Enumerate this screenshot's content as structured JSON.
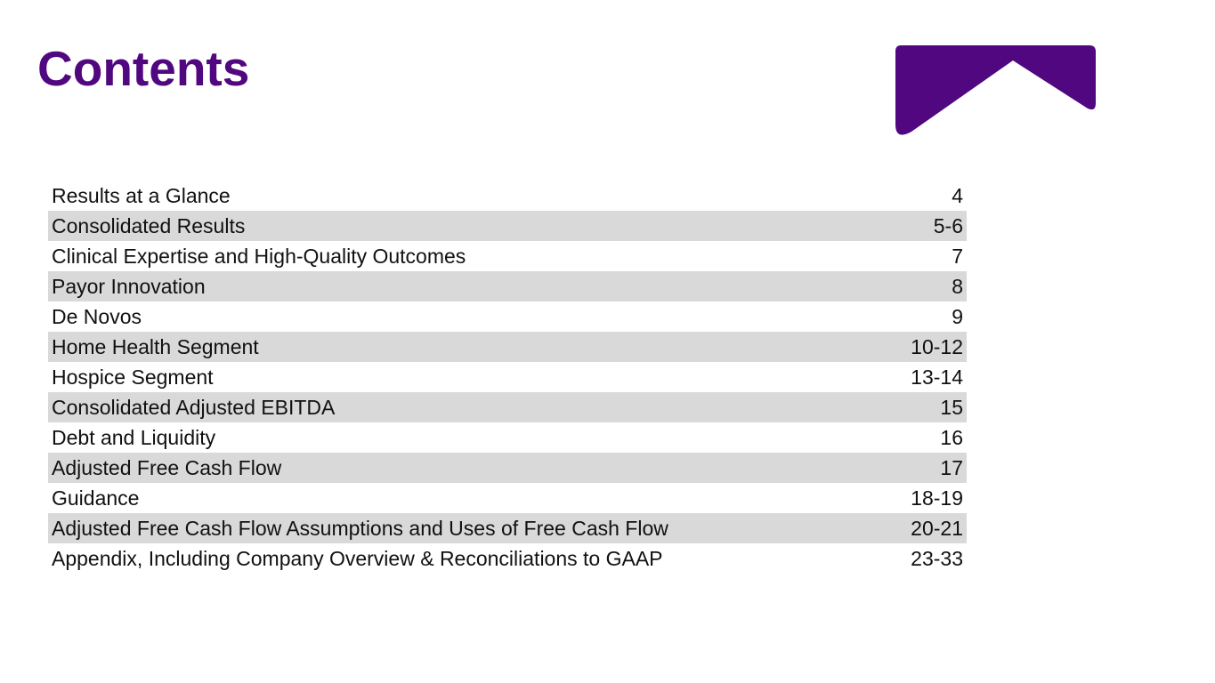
{
  "title": "Contents",
  "brand_color": "#50077f",
  "logo": {
    "icon": "roof-chevron-logo"
  },
  "toc": [
    {
      "label": "Results at a Glance",
      "pages": "4"
    },
    {
      "label": "Consolidated Results",
      "pages": "5-6"
    },
    {
      "label": "Clinical Expertise and High-Quality Outcomes",
      "pages": "7"
    },
    {
      "label": "Payor Innovation",
      "pages": "8"
    },
    {
      "label": "De Novos",
      "pages": "9"
    },
    {
      "label": "Home Health Segment",
      "pages": "10-12"
    },
    {
      "label": "Hospice Segment",
      "pages": "13-14"
    },
    {
      "label": "Consolidated Adjusted EBITDA",
      "pages": "15"
    },
    {
      "label": "Debt and Liquidity",
      "pages": "16"
    },
    {
      "label": "Adjusted Free Cash Flow",
      "pages": "17"
    },
    {
      "label": "Guidance",
      "pages": "18-19"
    },
    {
      "label": "Adjusted Free Cash Flow Assumptions and Uses of Free Cash Flow",
      "pages": "20-21"
    },
    {
      "label": "Appendix, Including Company Overview & Reconciliations to GAAP",
      "pages": "23-33"
    }
  ]
}
